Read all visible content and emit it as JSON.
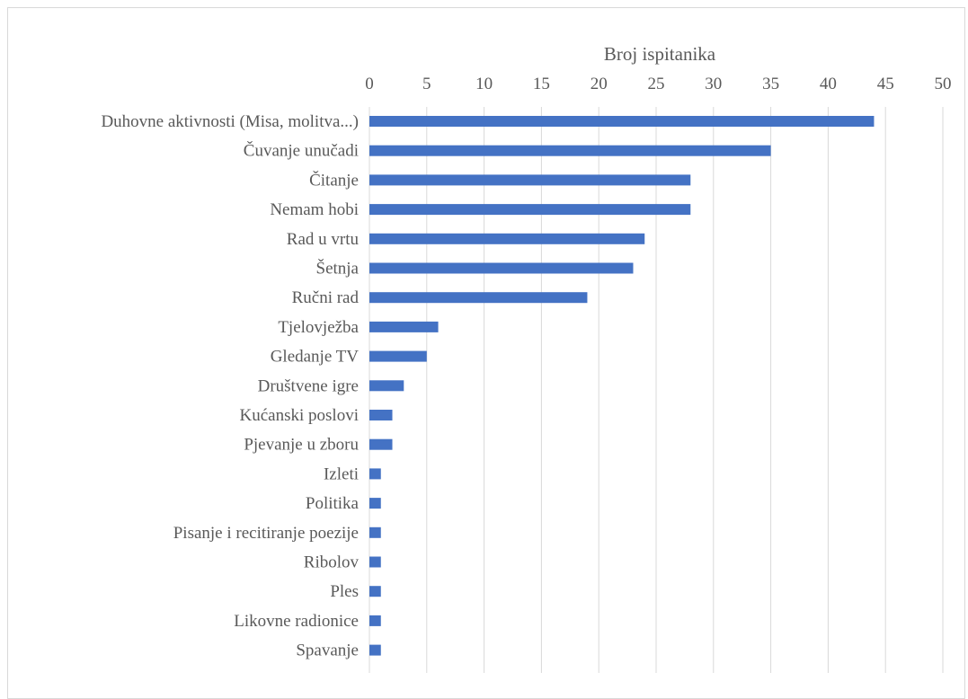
{
  "chart_data": {
    "type": "bar",
    "orientation": "horizontal",
    "xlabel": "Broj ispitanika",
    "xlim": [
      0,
      50
    ],
    "xticks": [
      0,
      5,
      10,
      15,
      20,
      25,
      30,
      35,
      40,
      45,
      50
    ],
    "x_axis_position": "top",
    "grid": true,
    "categories": [
      "Duhovne aktivnosti (Misa, molitva...)",
      "Čuvanje unučadi",
      "Čitanje",
      "Nemam hobi",
      "Rad u vrtu",
      "Šetnja",
      "Ručni rad",
      "Tjelovježba",
      "Gledanje TV",
      "Društvene igre",
      "Kućanski poslovi",
      "Pjevanje u zboru",
      "Izleti",
      "Politika",
      "Pisanje i recitiranje poezije",
      "Ribolov",
      "Ples",
      "Likovne radionice",
      "Spavanje"
    ],
    "values": [
      44,
      35,
      28,
      28,
      24,
      23,
      19,
      6,
      5,
      3,
      2,
      2,
      1,
      1,
      1,
      1,
      1,
      1,
      1
    ],
    "colors": {
      "bar": "#4472c4",
      "grid": "#d9d9d9",
      "text": "#595959"
    }
  }
}
